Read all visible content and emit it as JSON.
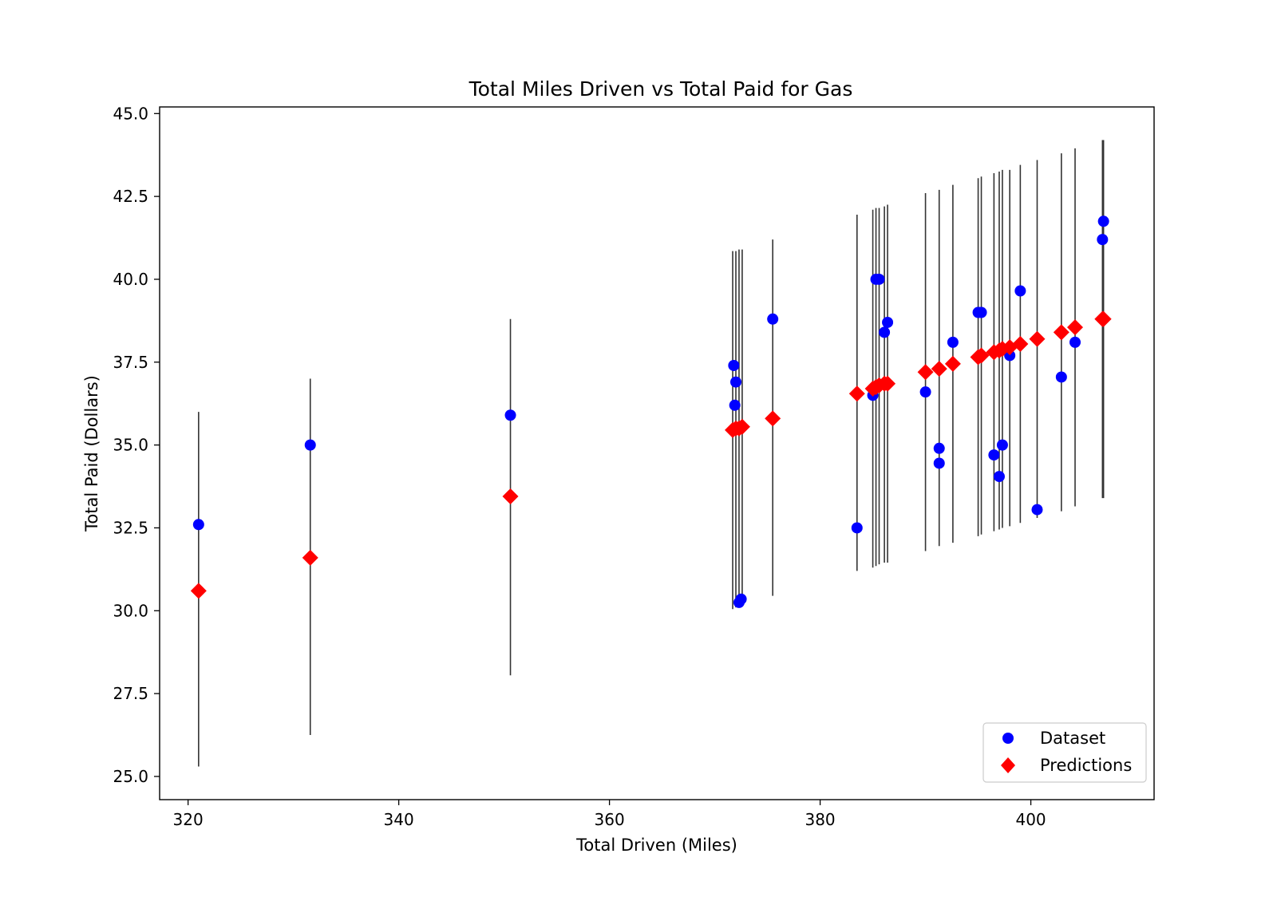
{
  "chart_data": {
    "type": "scatter",
    "title": "Total Miles Driven vs Total Paid for Gas",
    "xlabel": "Total Driven (Miles)",
    "ylabel": "Total Paid (Dollars)",
    "xlim": [
      317.3,
      411.7
    ],
    "ylim": [
      24.3,
      45.2
    ],
    "x_ticks": [
      320,
      340,
      360,
      380,
      400
    ],
    "x_tick_labels": [
      "320",
      "340",
      "360",
      "380",
      "400"
    ],
    "y_ticks": [
      25.0,
      27.5,
      30.0,
      32.5,
      35.0,
      37.5,
      40.0,
      42.5,
      45.0
    ],
    "y_tick_labels": [
      "25.0",
      "27.5",
      "30.0",
      "32.5",
      "35.0",
      "37.5",
      "40.0",
      "42.5",
      "45.0"
    ],
    "grid": false,
    "legend_position": "bottom-right",
    "series": [
      {
        "name": "Dataset",
        "marker": "circle",
        "color": "#0000ff",
        "points": [
          {
            "x": 321.0,
            "y": 32.6
          },
          {
            "x": 331.6,
            "y": 35.0
          },
          {
            "x": 350.6,
            "y": 35.9
          },
          {
            "x": 371.8,
            "y": 37.4
          },
          {
            "x": 372.0,
            "y": 36.9
          },
          {
            "x": 371.9,
            "y": 36.2
          },
          {
            "x": 372.3,
            "y": 30.25
          },
          {
            "x": 372.5,
            "y": 30.35
          },
          {
            "x": 375.5,
            "y": 38.8
          },
          {
            "x": 383.5,
            "y": 32.5
          },
          {
            "x": 385.0,
            "y": 36.5
          },
          {
            "x": 385.3,
            "y": 40.0
          },
          {
            "x": 385.6,
            "y": 40.0
          },
          {
            "x": 386.1,
            "y": 38.4
          },
          {
            "x": 386.4,
            "y": 38.7
          },
          {
            "x": 390.0,
            "y": 36.6
          },
          {
            "x": 391.3,
            "y": 34.9
          },
          {
            "x": 391.3,
            "y": 34.45
          },
          {
            "x": 392.6,
            "y": 38.1
          },
          {
            "x": 395.0,
            "y": 39.0
          },
          {
            "x": 395.3,
            "y": 39.0
          },
          {
            "x": 396.5,
            "y": 34.7
          },
          {
            "x": 397.0,
            "y": 34.05
          },
          {
            "x": 397.3,
            "y": 35.0
          },
          {
            "x": 398.0,
            "y": 37.7
          },
          {
            "x": 399.0,
            "y": 39.65
          },
          {
            "x": 400.6,
            "y": 33.05
          },
          {
            "x": 402.9,
            "y": 37.05
          },
          {
            "x": 404.2,
            "y": 38.1
          },
          {
            "x": 406.8,
            "y": 41.2
          },
          {
            "x": 406.9,
            "y": 41.75
          }
        ]
      },
      {
        "name": "Predictions",
        "marker": "diamond",
        "color": "#ff0000",
        "points": [
          {
            "x": 321.0,
            "y": 30.6,
            "low": 25.3,
            "high": 36.0
          },
          {
            "x": 331.6,
            "y": 31.6,
            "low": 26.25,
            "high": 37.0
          },
          {
            "x": 350.6,
            "y": 33.45,
            "low": 28.05,
            "high": 38.8
          },
          {
            "x": 371.7,
            "y": 35.45,
            "low": 30.05,
            "high": 40.85
          },
          {
            "x": 372.0,
            "y": 35.5,
            "low": 30.1,
            "high": 40.85
          },
          {
            "x": 372.3,
            "y": 35.5,
            "low": 30.1,
            "high": 40.9
          },
          {
            "x": 372.6,
            "y": 35.55,
            "low": 30.15,
            "high": 40.9
          },
          {
            "x": 375.5,
            "y": 35.8,
            "low": 30.45,
            "high": 41.2
          },
          {
            "x": 383.5,
            "y": 36.55,
            "low": 31.2,
            "high": 41.95
          },
          {
            "x": 385.0,
            "y": 36.7,
            "low": 31.3,
            "high": 42.1
          },
          {
            "x": 385.3,
            "y": 36.75,
            "low": 31.35,
            "high": 42.15
          },
          {
            "x": 385.6,
            "y": 36.8,
            "low": 31.4,
            "high": 42.15
          },
          {
            "x": 386.1,
            "y": 36.85,
            "low": 31.45,
            "high": 42.2
          },
          {
            "x": 386.4,
            "y": 36.85,
            "low": 31.45,
            "high": 42.25
          },
          {
            "x": 390.0,
            "y": 37.2,
            "low": 31.8,
            "high": 42.6
          },
          {
            "x": 391.3,
            "y": 37.3,
            "low": 31.95,
            "high": 42.7
          },
          {
            "x": 392.6,
            "y": 37.45,
            "low": 32.05,
            "high": 42.85
          },
          {
            "x": 395.0,
            "y": 37.65,
            "low": 32.25,
            "high": 43.05
          },
          {
            "x": 395.3,
            "y": 37.7,
            "low": 32.3,
            "high": 43.1
          },
          {
            "x": 396.5,
            "y": 37.8,
            "low": 32.4,
            "high": 43.2
          },
          {
            "x": 397.0,
            "y": 37.85,
            "low": 32.45,
            "high": 43.25
          },
          {
            "x": 397.3,
            "y": 37.9,
            "low": 32.5,
            "high": 43.3
          },
          {
            "x": 398.0,
            "y": 37.95,
            "low": 32.55,
            "high": 43.3
          },
          {
            "x": 399.0,
            "y": 38.05,
            "low": 32.65,
            "high": 43.45
          },
          {
            "x": 400.6,
            "y": 38.2,
            "low": 32.8,
            "high": 43.6
          },
          {
            "x": 402.9,
            "y": 38.4,
            "low": 33.0,
            "high": 43.8
          },
          {
            "x": 404.2,
            "y": 38.55,
            "low": 33.15,
            "high": 43.95
          },
          {
            "x": 406.8,
            "y": 38.8,
            "low": 33.4,
            "high": 44.2
          },
          {
            "x": 406.9,
            "y": 38.8,
            "low": 33.4,
            "high": 44.2
          }
        ]
      }
    ],
    "error_bar_color": "#333333"
  }
}
